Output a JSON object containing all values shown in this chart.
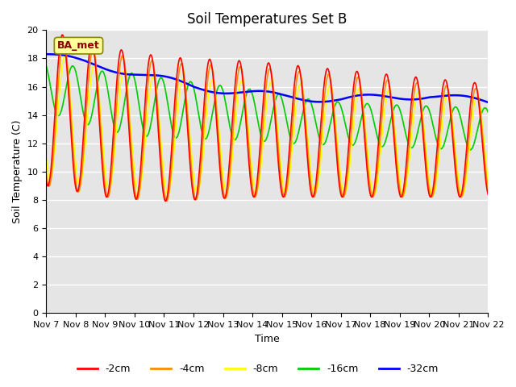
{
  "title": "Soil Temperatures Set B",
  "xlabel": "Time",
  "ylabel": "Soil Temperature (C)",
  "ylim": [
    0,
    20
  ],
  "yticks": [
    0,
    2,
    4,
    6,
    8,
    10,
    12,
    14,
    16,
    18,
    20
  ],
  "xtick_labels": [
    "Nov 7",
    "Nov 8",
    "Nov 9",
    "Nov 10",
    "Nov 11",
    "Nov 12",
    "Nov 13",
    "Nov 14",
    "Nov 15",
    "Nov 16",
    "Nov 17",
    "Nov 18",
    "Nov 19",
    "Nov 20",
    "Nov 21",
    "Nov 22"
  ],
  "annotation_text": "BA_met",
  "annotation_color": "#8B0000",
  "annotation_bg": "#FFFF99",
  "bg_color": "#E5E5E5",
  "series": [
    {
      "label": "-2cm",
      "color": "#FF0000",
      "lw": 1.2
    },
    {
      "label": "-4cm",
      "color": "#FF8C00",
      "lw": 1.2
    },
    {
      "label": "-8cm",
      "color": "#FFFF00",
      "lw": 1.2
    },
    {
      "label": "-16cm",
      "color": "#00CC00",
      "lw": 1.2
    },
    {
      "label": "-32cm",
      "color": "#0000FF",
      "lw": 1.8
    }
  ],
  "n_points": 720,
  "title_fontsize": 12,
  "label_fontsize": 9,
  "tick_fontsize": 8
}
